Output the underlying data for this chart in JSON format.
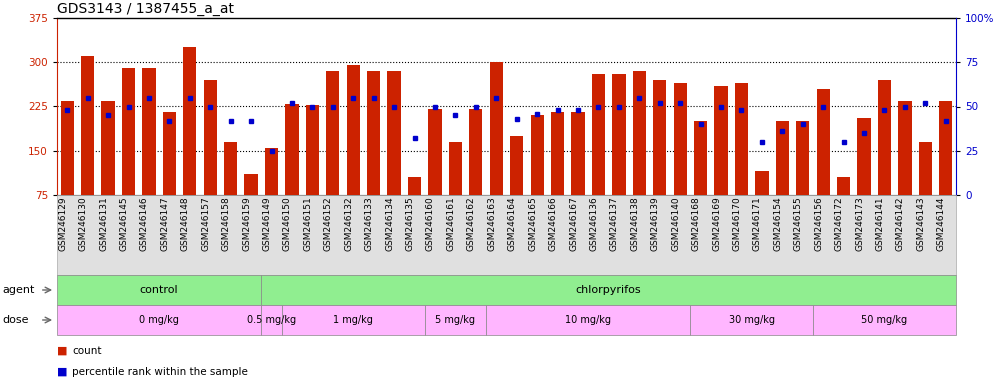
{
  "title": "GDS3143 / 1387455_a_at",
  "samples": [
    "GSM246129",
    "GSM246130",
    "GSM246131",
    "GSM246145",
    "GSM246146",
    "GSM246147",
    "GSM246148",
    "GSM246157",
    "GSM246158",
    "GSM246159",
    "GSM246149",
    "GSM246150",
    "GSM246151",
    "GSM246152",
    "GSM246132",
    "GSM246133",
    "GSM246134",
    "GSM246135",
    "GSM246160",
    "GSM246161",
    "GSM246162",
    "GSM246163",
    "GSM246164",
    "GSM246165",
    "GSM246166",
    "GSM246167",
    "GSM246136",
    "GSM246137",
    "GSM246138",
    "GSM246139",
    "GSM246140",
    "GSM246168",
    "GSM246169",
    "GSM246170",
    "GSM246171",
    "GSM246154",
    "GSM246155",
    "GSM246156",
    "GSM246172",
    "GSM246173",
    "GSM246141",
    "GSM246142",
    "GSM246143",
    "GSM246144"
  ],
  "bar_values": [
    235,
    310,
    235,
    290,
    290,
    215,
    325,
    270,
    165,
    110,
    155,
    230,
    228,
    285,
    295,
    285,
    285,
    105,
    220,
    165,
    220,
    300,
    175,
    210,
    215,
    215,
    280,
    280,
    285,
    270,
    265,
    200,
    260,
    265,
    115,
    200,
    200,
    255,
    105,
    205,
    270,
    235,
    165,
    235
  ],
  "percentile_values": [
    48,
    55,
    45,
    50,
    55,
    42,
    55,
    50,
    42,
    42,
    25,
    52,
    50,
    50,
    55,
    55,
    50,
    32,
    50,
    45,
    50,
    55,
    43,
    46,
    48,
    48,
    50,
    50,
    55,
    52,
    52,
    40,
    50,
    48,
    30,
    36,
    40,
    50,
    30,
    35,
    48,
    50,
    52,
    42
  ],
  "agent_groups": [
    {
      "label": "control",
      "start": 0,
      "end": 9,
      "color": "#90ee90"
    },
    {
      "label": "chlorpyrifos",
      "start": 10,
      "end": 43,
      "color": "#90ee90"
    }
  ],
  "dose_groups": [
    {
      "label": "0 mg/kg",
      "start": 0,
      "end": 9,
      "color": "#ffb6ff"
    },
    {
      "label": "0.5 mg/kg",
      "start": 10,
      "end": 10,
      "color": "#ffb6ff"
    },
    {
      "label": "1 mg/kg",
      "start": 11,
      "end": 17,
      "color": "#ffb6ff"
    },
    {
      "label": "5 mg/kg",
      "start": 18,
      "end": 20,
      "color": "#ffb6ff"
    },
    {
      "label": "10 mg/kg",
      "start": 21,
      "end": 30,
      "color": "#ffb6ff"
    },
    {
      "label": "30 mg/kg",
      "start": 31,
      "end": 36,
      "color": "#ffb6ff"
    },
    {
      "label": "50 mg/kg",
      "start": 37,
      "end": 43,
      "color": "#ffb6ff"
    }
  ],
  "ylim_left": [
    75,
    375
  ],
  "ylim_right": [
    0,
    100
  ],
  "yticks_left": [
    75,
    150,
    225,
    300,
    375
  ],
  "yticks_right": [
    0,
    25,
    50,
    75,
    100
  ],
  "bar_color": "#cc2200",
  "dot_color": "#0000cc",
  "bg_color": "#ffffff",
  "grid_color": "#000000",
  "title_fontsize": 10,
  "tick_fontsize": 6.5,
  "label_fontsize": 8
}
